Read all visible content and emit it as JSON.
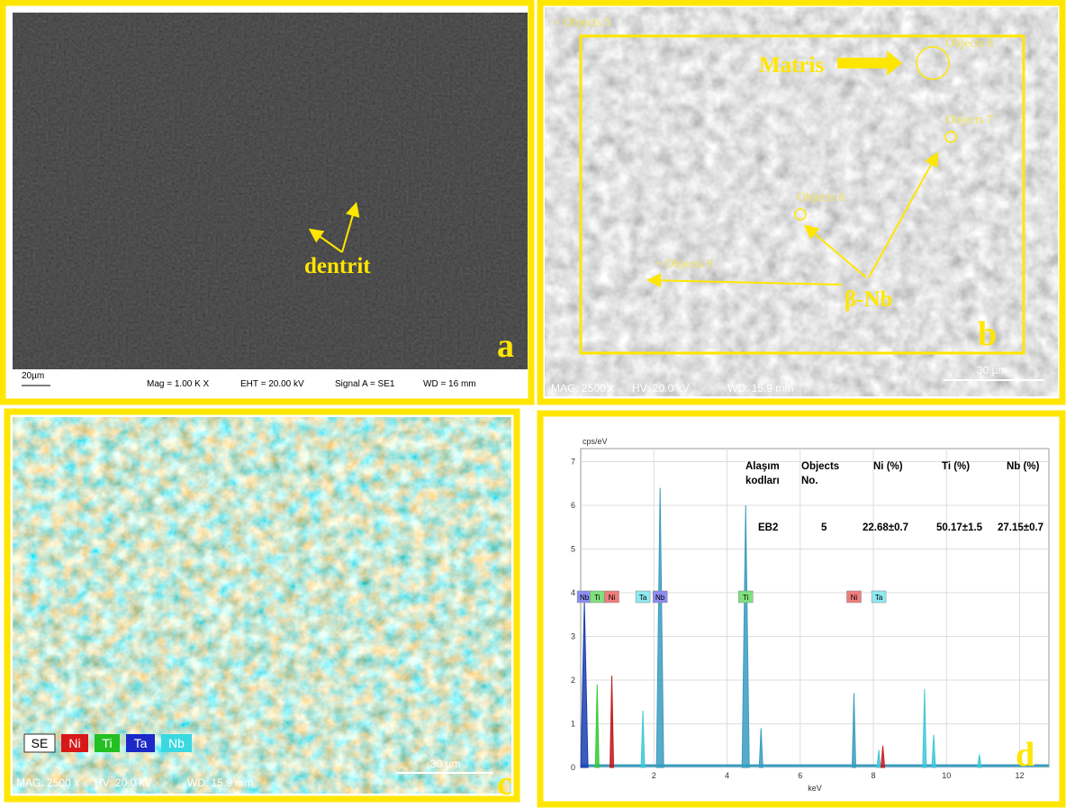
{
  "panel_a": {
    "label": "a",
    "annotation": "dentrit",
    "scale_bar": "20µm",
    "info": [
      "Mag =  1.00 K X",
      "EHT = 20.00 kV",
      "Signal A = SE1",
      "WD =  16 mm"
    ]
  },
  "panel_b": {
    "label": "b",
    "matrix_label": "Matris",
    "phase_label": "β-Nb",
    "objects": [
      "+ Objects 5",
      "Objects 8",
      "Objects 7",
      "Objects 6",
      "+ Objects 9"
    ],
    "info": [
      "MAG: 2500 x",
      "HV: 20.0 kV",
      "WD: 15.9 mm"
    ],
    "scale_bar": "30 µm"
  },
  "panel_c": {
    "label": "c",
    "legend": [
      "SE",
      "Ni",
      "Ti",
      "Ta",
      "Nb"
    ],
    "info": [
      "MAG: 2500 x",
      "HV: 20.0 kV",
      "WD: 15.9 mm"
    ],
    "scale_bar": "30 µm"
  },
  "panel_d": {
    "label": "d",
    "y_unit": "cps/eV",
    "x_label": "keV",
    "xlim": [
      0,
      12.8
    ],
    "ylim": [
      0,
      7.3
    ],
    "xticks": [
      2,
      4,
      6,
      8,
      10,
      12
    ],
    "yticks": [
      0,
      1,
      2,
      3,
      4,
      5,
      6,
      7
    ],
    "table": {
      "header": [
        "Alaşım kodları",
        "Objects No.",
        "Ni (%)",
        "Ti (%)",
        "Nb (%)"
      ],
      "row": [
        "EB2",
        "5",
        "22.68±0.7",
        "50.17±1.5",
        "27.15±0.7"
      ]
    },
    "element_labels": {
      "names": [
        "Nb",
        "Ti",
        "Ni",
        "Ta",
        "Nb",
        "Ti",
        "Ni",
        "Ta"
      ],
      "x": [
        0.1,
        0.45,
        0.85,
        1.7,
        2.17,
        4.51,
        7.47,
        8.15
      ],
      "colors": [
        "#8c8cf0",
        "#7ee07e",
        "#f07c7c",
        "#8ee8f0",
        "#8c8cf0",
        "#7ee07e",
        "#f07c7c",
        "#8ee8f0"
      ]
    },
    "peaks": {
      "x": [
        0.1,
        0.45,
        0.85,
        1.7,
        2.17,
        4.51,
        4.93,
        7.47,
        8.15,
        8.26,
        9.4,
        9.65,
        10.9
      ],
      "values": [
        3.8,
        1.9,
        2.1,
        1.3,
        6.4,
        6.0,
        0.9,
        1.7,
        0.4,
        0.5,
        1.8,
        0.75,
        0.3
      ],
      "colors": [
        "#1a3fb0",
        "#33cc33",
        "#c01818",
        "#3fc8d8",
        "#3a9cc0",
        "#3a9cc0",
        "#3a9cc0",
        "#3a9cc0",
        "#3fc8d8",
        "#d01818",
        "#3fc8d8",
        "#3fc8d8",
        "#3fc8d8"
      ]
    }
  }
}
